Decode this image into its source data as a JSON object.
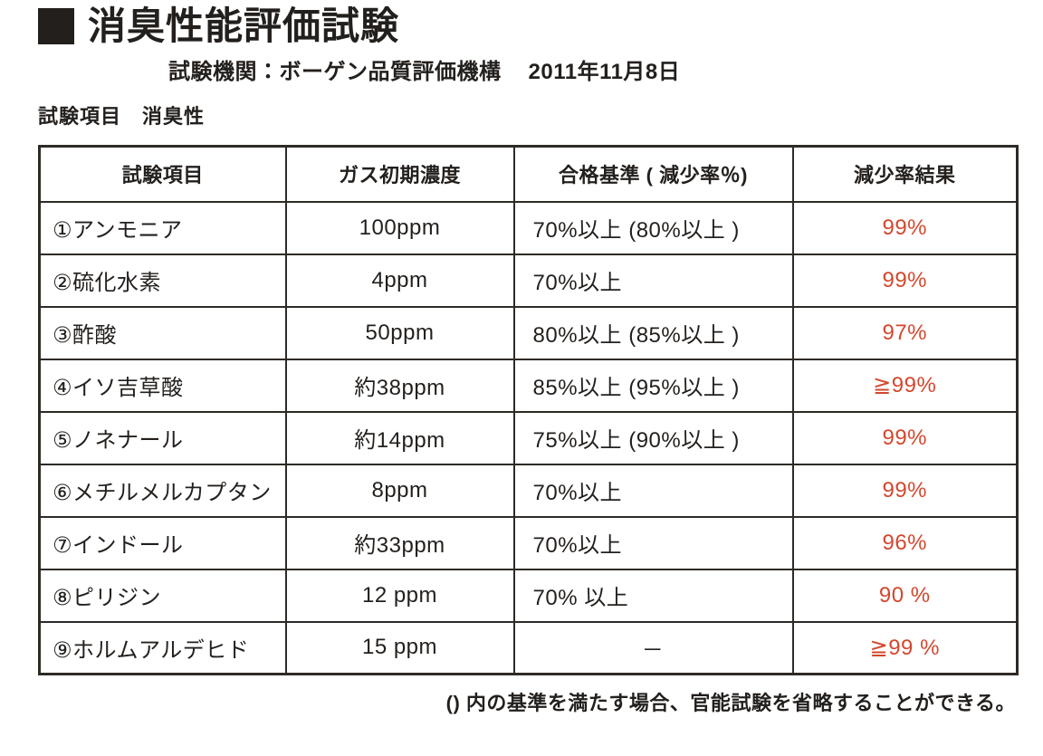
{
  "header": {
    "title": "消臭性能評価試験",
    "institution": "試験機関：ボーゲン品質評価機構",
    "date": "2011年11月8日",
    "section_label": "試験項目　消臭性"
  },
  "table": {
    "headers": [
      "試験項目",
      "ガス初期濃度",
      "合格基準 ( 減少率％)",
      "減少率結果"
    ],
    "rows": [
      {
        "item": "①アンモニア",
        "concentration": "100ppm",
        "criteria": "70%以上 (80%以上 )",
        "result": "99%"
      },
      {
        "item": "②硫化水素",
        "concentration": "4ppm",
        "criteria": "70%以上",
        "result": "99%"
      },
      {
        "item": "③酢酸",
        "concentration": "50ppm",
        "criteria": "80%以上 (85%以上 )",
        "result": "97%"
      },
      {
        "item": "④イソ吉草酸",
        "concentration": "約38ppm",
        "criteria": "85%以上 (95%以上 )",
        "result": "≧99%"
      },
      {
        "item": "⑤ノネナール",
        "concentration": "約14ppm",
        "criteria": "75%以上 (90%以上 )",
        "result": "99%"
      },
      {
        "item": "⑥メチルメルカプタン",
        "concentration": "8ppm",
        "criteria": "70%以上",
        "result": "99%"
      },
      {
        "item": "⑦インドール",
        "concentration": "約33ppm",
        "criteria": "70%以上",
        "result": "96%"
      },
      {
        "item": "⑧ピリジン",
        "concentration": "12 ppm",
        "criteria": "70% 以上",
        "result": "90 %"
      },
      {
        "item": "⑨ホルムアルデヒド",
        "concentration": "15 ppm",
        "criteria": "－",
        "result": "≧99 %"
      }
    ]
  },
  "footnote": "() 内の基準を満たす場合、官能試験を省略することができる。",
  "colors": {
    "result_red": "#d3472e",
    "border": "#2e2a26",
    "text": "#231f1c"
  }
}
